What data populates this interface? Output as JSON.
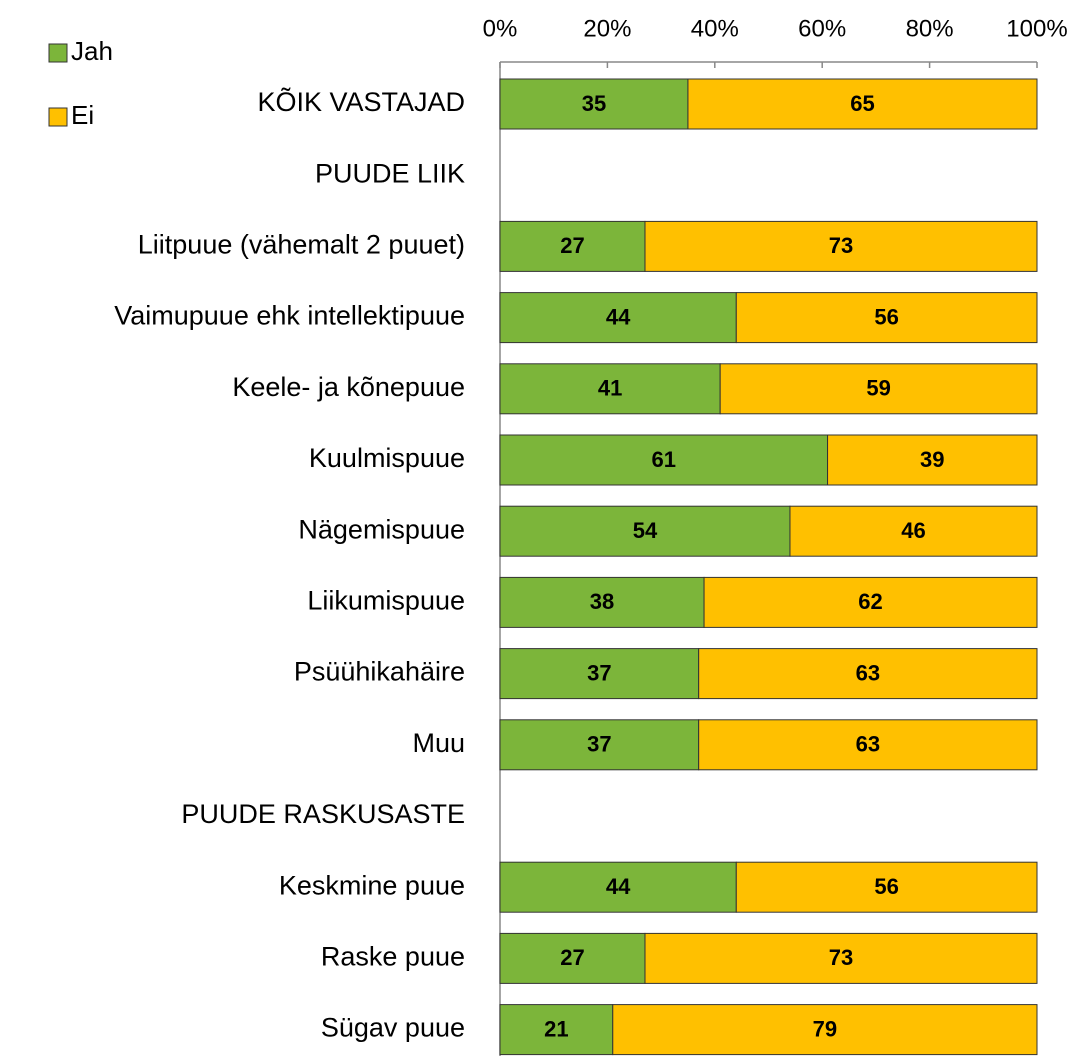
{
  "chart_data": {
    "type": "stacked-barh",
    "categories": [
      "KÕIK VASTAJAD",
      "PUUDE LIIK",
      "Liitpuue (vähemalt 2 puuet)",
      "Vaimupuue ehk intellektipuue",
      "Keele- ja kõnepuue",
      "Kuulmispuue",
      "Nägemispuue",
      "Liikumispuue",
      "Psüühikahäire",
      "Muu",
      "PUUDE RASKUSASTE",
      "Keskmine puue",
      "Raske puue",
      "Sügav puue"
    ],
    "series": [
      {
        "name": "Jah",
        "color": "#7cb53a",
        "values": [
          35,
          null,
          27,
          44,
          41,
          61,
          54,
          38,
          37,
          37,
          null,
          44,
          27,
          21
        ]
      },
      {
        "name": "Ei",
        "color": "#ffc000",
        "values": [
          65,
          null,
          73,
          56,
          59,
          39,
          46,
          62,
          63,
          63,
          null,
          56,
          73,
          79
        ]
      }
    ],
    "xlim": [
      0,
      100
    ],
    "xticks": [
      {
        "value": 0,
        "label": "0%"
      },
      {
        "value": 20,
        "label": "20%"
      },
      {
        "value": 40,
        "label": "40%"
      },
      {
        "value": 60,
        "label": "60%"
      },
      {
        "value": 80,
        "label": "80%"
      },
      {
        "value": 100,
        "label": "100%"
      }
    ],
    "legend": "top-left"
  }
}
